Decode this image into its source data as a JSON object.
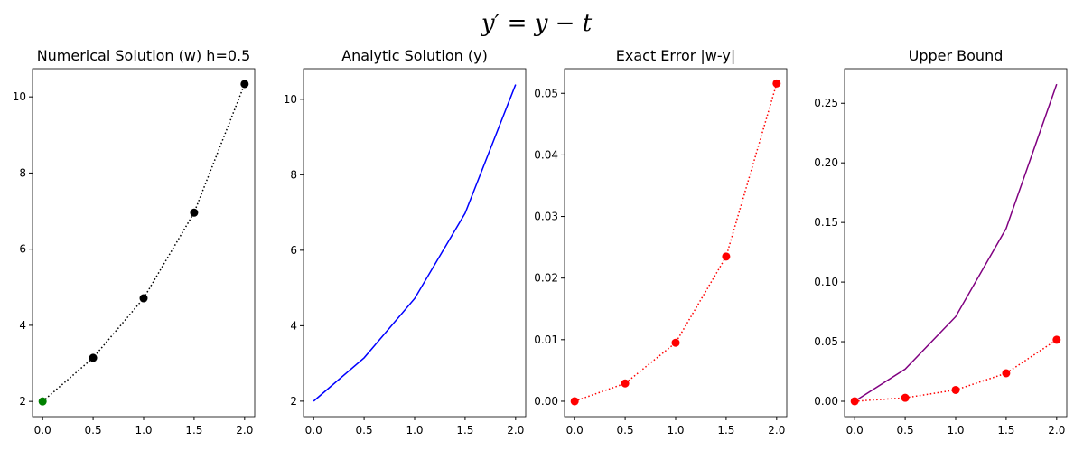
{
  "title": "y′ = y − t",
  "chart_data": [
    {
      "type": "line",
      "title": "Numerical Solution (w) h=0.5",
      "x": [
        0,
        0.5,
        1,
        1.5,
        2
      ],
      "series": [
        {
          "color": "black",
          "linestyle": "dotted",
          "marker": true,
          "marker_colors": [
            "green",
            "black",
            "black",
            "black",
            "black"
          ],
          "values": [
            2,
            3.1458,
            4.7088,
            6.9582,
            10.3375
          ]
        }
      ],
      "xlim": [
        -0.1,
        2.1
      ],
      "xticks": [
        {
          "value": 0,
          "label": "0.0"
        },
        {
          "value": 0.5,
          "label": "0.5"
        },
        {
          "value": 1,
          "label": "1.0"
        },
        {
          "value": 1.5,
          "label": "1.5"
        },
        {
          "value": 2,
          "label": "2.0"
        }
      ],
      "ylim": [
        1.6,
        10.74
      ],
      "yticks": [
        2,
        4,
        6,
        8,
        10
      ]
    },
    {
      "type": "line",
      "title": "Analytic Solution (y)",
      "x": [
        0,
        0.5,
        1,
        1.5,
        2
      ],
      "series": [
        {
          "color": "blue",
          "linestyle": "solid",
          "marker": false,
          "values": [
            2,
            3.1487,
            4.7183,
            6.9817,
            10.3891
          ]
        }
      ],
      "xlim": [
        -0.1,
        2.1
      ],
      "xticks": [
        {
          "value": 0,
          "label": "0.0"
        },
        {
          "value": 0.5,
          "label": "0.5"
        },
        {
          "value": 1,
          "label": "1.0"
        },
        {
          "value": 1.5,
          "label": "1.5"
        },
        {
          "value": 2,
          "label": "2.0"
        }
      ],
      "ylim": [
        1.59,
        10.81
      ],
      "yticks": [
        2,
        4,
        6,
        8,
        10
      ]
    },
    {
      "type": "line",
      "title": "Exact Error |w-y|",
      "x": [
        0,
        0.5,
        1,
        1.5,
        2
      ],
      "series": [
        {
          "color": "red",
          "linestyle": "dotted",
          "marker": true,
          "values": [
            0,
            0.0029,
            0.0095,
            0.0235,
            0.0516
          ]
        }
      ],
      "xlim": [
        -0.1,
        2.1
      ],
      "xticks": [
        {
          "value": 0,
          "label": "0.0"
        },
        {
          "value": 0.5,
          "label": "0.5"
        },
        {
          "value": 1,
          "label": "1.0"
        },
        {
          "value": 1.5,
          "label": "1.5"
        },
        {
          "value": 2,
          "label": "2.0"
        }
      ],
      "ylim": [
        -0.0025,
        0.054
      ],
      "yticks": [
        {
          "value": 0,
          "label": "0.00"
        },
        {
          "value": 0.01,
          "label": "0.01"
        },
        {
          "value": 0.02,
          "label": "0.02"
        },
        {
          "value": 0.03,
          "label": "0.03"
        },
        {
          "value": 0.04,
          "label": "0.04"
        },
        {
          "value": 0.05,
          "label": "0.05"
        }
      ]
    },
    {
      "type": "line",
      "title": "Upper Bound",
      "x": [
        0,
        0.5,
        1,
        1.5,
        2
      ],
      "series": [
        {
          "color": "purple",
          "linestyle": "solid",
          "marker": false,
          "values": [
            0,
            0.027,
            0.071,
            0.145,
            0.266
          ]
        },
        {
          "color": "red",
          "linestyle": "dotted",
          "marker": true,
          "values": [
            0,
            0.0029,
            0.0095,
            0.0235,
            0.0516
          ]
        }
      ],
      "xlim": [
        -0.1,
        2.1
      ],
      "xticks": [
        {
          "value": 0,
          "label": "0.0"
        },
        {
          "value": 0.5,
          "label": "0.5"
        },
        {
          "value": 1,
          "label": "1.0"
        },
        {
          "value": 1.5,
          "label": "1.5"
        },
        {
          "value": 2,
          "label": "2.0"
        }
      ],
      "ylim": [
        -0.0129,
        0.279
      ],
      "yticks": [
        {
          "value": 0,
          "label": "0.00"
        },
        {
          "value": 0.05,
          "label": "0.05"
        },
        {
          "value": 0.1,
          "label": "0.10"
        },
        {
          "value": 0.15,
          "label": "0.15"
        },
        {
          "value": 0.2,
          "label": "0.20"
        },
        {
          "value": 0.25,
          "label": "0.25"
        }
      ]
    }
  ]
}
